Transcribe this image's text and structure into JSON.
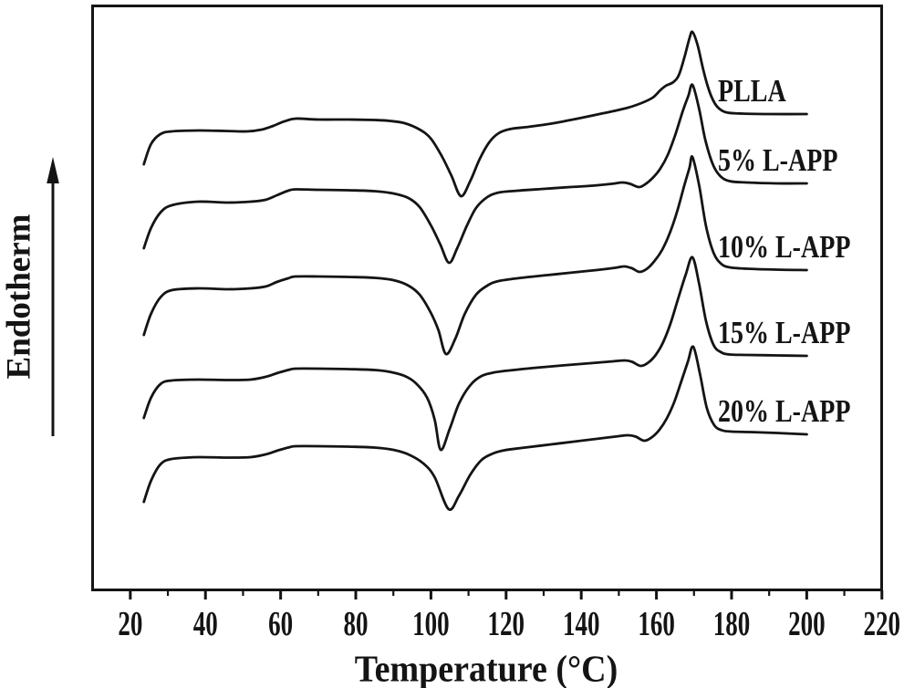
{
  "figure": {
    "x_axis_label": "Temperature (°C)",
    "y_axis_label": "Endotherm",
    "y_axis_arrow_direction": "up",
    "line_color": "#141414",
    "background_color": "#ffffff"
  },
  "chart_data": {
    "type": "line",
    "title": "",
    "xlabel": "Temperature (°C)",
    "ylabel": "Endotherm",
    "xlim": [
      9.6,
      220.3
    ],
    "x_ticks": [
      20,
      40,
      60,
      80,
      100,
      120,
      140,
      160,
      180,
      200,
      220
    ],
    "x_minor_ticks": [
      30,
      50,
      70,
      90,
      110,
      130,
      150,
      170,
      190,
      210
    ],
    "grid": false,
    "legend_position": "inline-right-of-each-curve",
    "y_encoding": "image pixel y, arbitrary endotherm units (up = endothermic); curves vertically offset",
    "series": [
      {
        "name": "PLLA",
        "features": {
          "glass_transition_C": 61,
          "cold_crystallization_min_C": 108,
          "pre_melt_feature_C": null,
          "melting_shoulder_C": 163,
          "melting_peak_C": 169.6
        },
        "points": [
          [
            23.6,
            180
          ],
          [
            25.5,
            158
          ],
          [
            28,
            147
          ],
          [
            31,
            144
          ],
          [
            38,
            143
          ],
          [
            45,
            143.5
          ],
          [
            51,
            144
          ],
          [
            55,
            142
          ],
          [
            58,
            138
          ],
          [
            61,
            133
          ],
          [
            64,
            130
          ],
          [
            70,
            131
          ],
          [
            78,
            131
          ],
          [
            85,
            131.5
          ],
          [
            89,
            132.5
          ],
          [
            93,
            135
          ],
          [
            97,
            142
          ],
          [
            100,
            152
          ],
          [
            103,
            172
          ],
          [
            105.5,
            193
          ],
          [
            108,
            215
          ],
          [
            110.5,
            198
          ],
          [
            113,
            174
          ],
          [
            115.5,
            156
          ],
          [
            118,
            146
          ],
          [
            121,
            141.5
          ],
          [
            126,
            139
          ],
          [
            132,
            135.5
          ],
          [
            139,
            130
          ],
          [
            146,
            124
          ],
          [
            152,
            118.5
          ],
          [
            156,
            113
          ],
          [
            159,
            107
          ],
          [
            161,
            99
          ],
          [
            162.5,
            94
          ],
          [
            164.5,
            90
          ],
          [
            166,
            82
          ],
          [
            167.5,
            62
          ],
          [
            168.8,
            42
          ],
          [
            169.6,
            35
          ],
          [
            171,
            50
          ],
          [
            172.5,
            77
          ],
          [
            174,
            99
          ],
          [
            175.5,
            113
          ],
          [
            177,
            120
          ],
          [
            179,
            123.5
          ],
          [
            183,
            124.5
          ],
          [
            190,
            125
          ],
          [
            200,
            125
          ]
        ]
      },
      {
        "name": "5% L-APP",
        "features": {
          "glass_transition_C": 61,
          "cold_crystallization_min_C": 104.8,
          "pre_melt_feature_C": 153,
          "melting_shoulder_C": null,
          "melting_peak_C": 169.6
        },
        "points": [
          [
            23.6,
            272
          ],
          [
            25.5,
            250
          ],
          [
            28,
            233
          ],
          [
            31,
            225
          ],
          [
            38,
            221
          ],
          [
            46,
            222
          ],
          [
            52,
            221
          ],
          [
            56,
            219
          ],
          [
            59,
            214
          ],
          [
            62,
            209
          ],
          [
            64,
            207.5
          ],
          [
            70,
            208
          ],
          [
            78,
            208.5
          ],
          [
            85,
            209.5
          ],
          [
            90,
            212
          ],
          [
            94,
            217
          ],
          [
            97,
            227
          ],
          [
            100,
            247
          ],
          [
            102.5,
            268
          ],
          [
            104.8,
            288
          ],
          [
            107,
            272
          ],
          [
            109.5,
            248
          ],
          [
            112,
            228
          ],
          [
            115,
            216
          ],
          [
            118,
            211
          ],
          [
            123,
            209
          ],
          [
            130,
            207
          ],
          [
            137,
            205
          ],
          [
            143,
            203.5
          ],
          [
            148,
            201.5
          ],
          [
            151,
            200
          ],
          [
            153,
            201.5
          ],
          [
            155.3,
            205
          ],
          [
            157,
            202
          ],
          [
            159,
            195
          ],
          [
            161,
            185
          ],
          [
            163,
            170
          ],
          [
            165,
            148
          ],
          [
            167,
            122
          ],
          [
            168.5,
            105
          ],
          [
            169.6,
            93
          ],
          [
            171.3,
            118
          ],
          [
            173,
            153
          ],
          [
            175,
            180
          ],
          [
            177,
            193
          ],
          [
            179.5,
            198.5
          ],
          [
            184,
            200
          ],
          [
            192,
            201
          ],
          [
            200,
            201
          ]
        ]
      },
      {
        "name": "10% L-APP",
        "features": {
          "glass_transition_C": 61,
          "cold_crystallization_min_C": 104,
          "pre_melt_feature_C": 153.5,
          "melting_shoulder_C": null,
          "melting_peak_C": 169.6
        },
        "points": [
          [
            23.6,
            367
          ],
          [
            25.5,
            344
          ],
          [
            28,
            326
          ],
          [
            31,
            318
          ],
          [
            38,
            316
          ],
          [
            46,
            317
          ],
          [
            52,
            316
          ],
          [
            56,
            314
          ],
          [
            59,
            309
          ],
          [
            62,
            305
          ],
          [
            64,
            303
          ],
          [
            70,
            303
          ],
          [
            78,
            303.5
          ],
          [
            85,
            304.5
          ],
          [
            90,
            307
          ],
          [
            94,
            313
          ],
          [
            97,
            323
          ],
          [
            100,
            343
          ],
          [
            102,
            362
          ],
          [
            104,
            388
          ],
          [
            106.5,
            371
          ],
          [
            109,
            344
          ],
          [
            112,
            323
          ],
          [
            115,
            313
          ],
          [
            118,
            308
          ],
          [
            124,
            304.5
          ],
          [
            131,
            301.5
          ],
          [
            138,
            298.5
          ],
          [
            144,
            296
          ],
          [
            149,
            293.5
          ],
          [
            151.5,
            292
          ],
          [
            153.5,
            294
          ],
          [
            155.5,
            298
          ],
          [
            157.5,
            294.5
          ],
          [
            159.5,
            286
          ],
          [
            161.5,
            274
          ],
          [
            163.5,
            256
          ],
          [
            165.5,
            232
          ],
          [
            167.5,
            202
          ],
          [
            168.8,
            184
          ],
          [
            169.6,
            172
          ],
          [
            171.4,
            204
          ],
          [
            173.2,
            248
          ],
          [
            175.2,
            277
          ],
          [
            177.2,
            289
          ],
          [
            179.5,
            293
          ],
          [
            184,
            294.5
          ],
          [
            192,
            295.5
          ],
          [
            200,
            296
          ]
        ]
      },
      {
        "name": "15% L-APP",
        "features": {
          "glass_transition_C": 61,
          "cold_crystallization_min_C": 102.6,
          "pre_melt_feature_C": 154,
          "melting_shoulder_C": null,
          "melting_peak_C": 169.6
        },
        "points": [
          [
            23.6,
            458
          ],
          [
            25.5,
            436
          ],
          [
            28,
            421
          ],
          [
            31,
            417
          ],
          [
            38,
            416
          ],
          [
            46,
            416.5
          ],
          [
            52,
            416
          ],
          [
            56,
            413
          ],
          [
            59,
            409
          ],
          [
            62,
            405.5
          ],
          [
            64,
            404
          ],
          [
            70,
            404
          ],
          [
            78,
            404.5
          ],
          [
            85,
            405.5
          ],
          [
            89,
            407.5
          ],
          [
            93,
            412
          ],
          [
            96,
            420
          ],
          [
            99,
            436
          ],
          [
            101,
            460
          ],
          [
            102.6,
            493
          ],
          [
            105,
            470
          ],
          [
            107.5,
            442
          ],
          [
            110.5,
            422
          ],
          [
            113.5,
            412
          ],
          [
            117,
            408
          ],
          [
            122,
            405.5
          ],
          [
            128,
            403
          ],
          [
            135,
            400.5
          ],
          [
            141,
            398.5
          ],
          [
            147,
            396.5
          ],
          [
            151.5,
            395
          ],
          [
            153.5,
            396.5
          ],
          [
            155.8,
            401
          ],
          [
            157.8,
            397.5
          ],
          [
            159.8,
            389
          ],
          [
            161.8,
            375
          ],
          [
            163.8,
            354
          ],
          [
            165.8,
            327
          ],
          [
            167.8,
            301
          ],
          [
            169.6,
            282
          ],
          [
            171.4,
            312
          ],
          [
            173.2,
            352
          ],
          [
            175.2,
            378
          ],
          [
            177.2,
            386
          ],
          [
            179.5,
            388.5
          ],
          [
            184,
            389
          ],
          [
            192,
            389.5
          ],
          [
            200,
            390
          ]
        ]
      },
      {
        "name": "20% L-APP",
        "features": {
          "glass_transition_C": 61,
          "cold_crystallization_min_C": 104.7,
          "pre_melt_feature_C": 155,
          "melting_shoulder_C": null,
          "melting_peak_C": 169.8
        },
        "points": [
          [
            23.6,
            550
          ],
          [
            25.5,
            527
          ],
          [
            28,
            509
          ],
          [
            31,
            503
          ],
          [
            38,
            501
          ],
          [
            46,
            501.5
          ],
          [
            52,
            501
          ],
          [
            56,
            498
          ],
          [
            59,
            494
          ],
          [
            62,
            490.5
          ],
          [
            64,
            489
          ],
          [
            70,
            489
          ],
          [
            78,
            489.5
          ],
          [
            85,
            490.5
          ],
          [
            90,
            493
          ],
          [
            94,
            498
          ],
          [
            98,
            508
          ],
          [
            101,
            523
          ],
          [
            104.7,
            558
          ],
          [
            107.5,
            543
          ],
          [
            110.5,
            520
          ],
          [
            113.5,
            504
          ],
          [
            116.5,
            497
          ],
          [
            119.5,
            493.5
          ],
          [
            125,
            490.5
          ],
          [
            132,
            487
          ],
          [
            139,
            483.5
          ],
          [
            145,
            480.5
          ],
          [
            150,
            478
          ],
          [
            152.5,
            477
          ],
          [
            154.5,
            478.5
          ],
          [
            156.7,
            483
          ],
          [
            158.7,
            479.5
          ],
          [
            160.7,
            471.5
          ],
          [
            162.7,
            459
          ],
          [
            164.7,
            441
          ],
          [
            166.7,
            417
          ],
          [
            168.4,
            396
          ],
          [
            169.8,
            380
          ],
          [
            171.6,
            410
          ],
          [
            173.4,
            447
          ],
          [
            175.4,
            466
          ],
          [
            177.4,
            471.5
          ],
          [
            180,
            473
          ],
          [
            185,
            473.5
          ],
          [
            192,
            474.5
          ],
          [
            200,
            476
          ]
        ]
      }
    ]
  }
}
